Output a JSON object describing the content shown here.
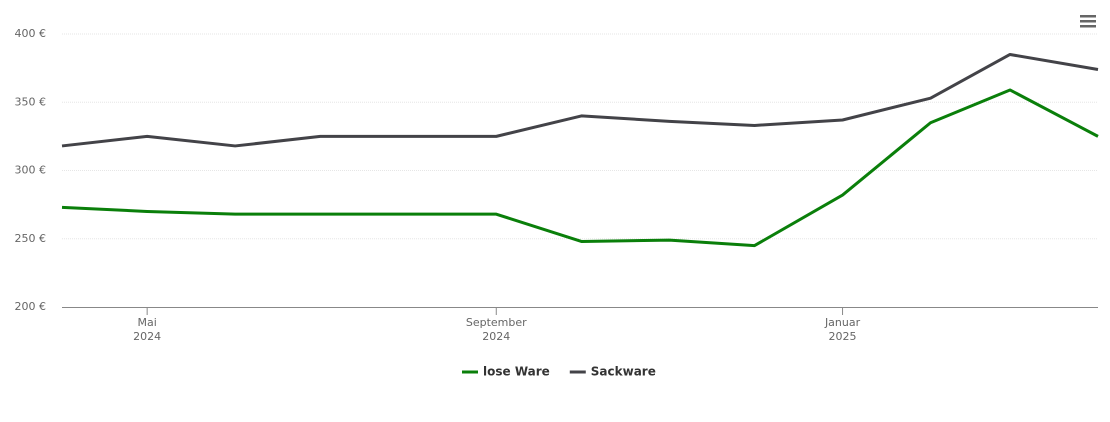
{
  "chart_data": {
    "type": "line",
    "x": [
      "2024-04",
      "2024-05",
      "2024-06",
      "2024-07",
      "2024-08",
      "2024-09",
      "2024-10",
      "2024-11",
      "2024-12",
      "2025-01",
      "2025-02",
      "2025-03",
      "2025-04"
    ],
    "series": [
      {
        "name": "lose Ware",
        "color": "#0a7f0a",
        "values": [
          273,
          270,
          268,
          268,
          268,
          268,
          248,
          249,
          245,
          282,
          335,
          359,
          325
        ]
      },
      {
        "name": "Sackware",
        "color": "#434348",
        "values": [
          318,
          325,
          318,
          325,
          325,
          325,
          340,
          336,
          333,
          337,
          353,
          385,
          374
        ]
      }
    ],
    "xlim": [
      "2024-04",
      "2025-04"
    ],
    "xticks": [
      {
        "value": "2024-05",
        "label": "Mai",
        "year": "2024"
      },
      {
        "value": "2024-09",
        "label": "September",
        "year": "2024"
      },
      {
        "value": "2025-01",
        "label": "Januar",
        "year": "2025"
      }
    ],
    "ylim": [
      200,
      400
    ],
    "yticks": [
      {
        "value": 200,
        "label": "200 €"
      },
      {
        "value": 250,
        "label": "250 €"
      },
      {
        "value": 300,
        "label": "300 €"
      },
      {
        "value": 350,
        "label": "350 €"
      },
      {
        "value": 400,
        "label": "400 €"
      }
    ],
    "grid": true,
    "legend": "bottom"
  }
}
